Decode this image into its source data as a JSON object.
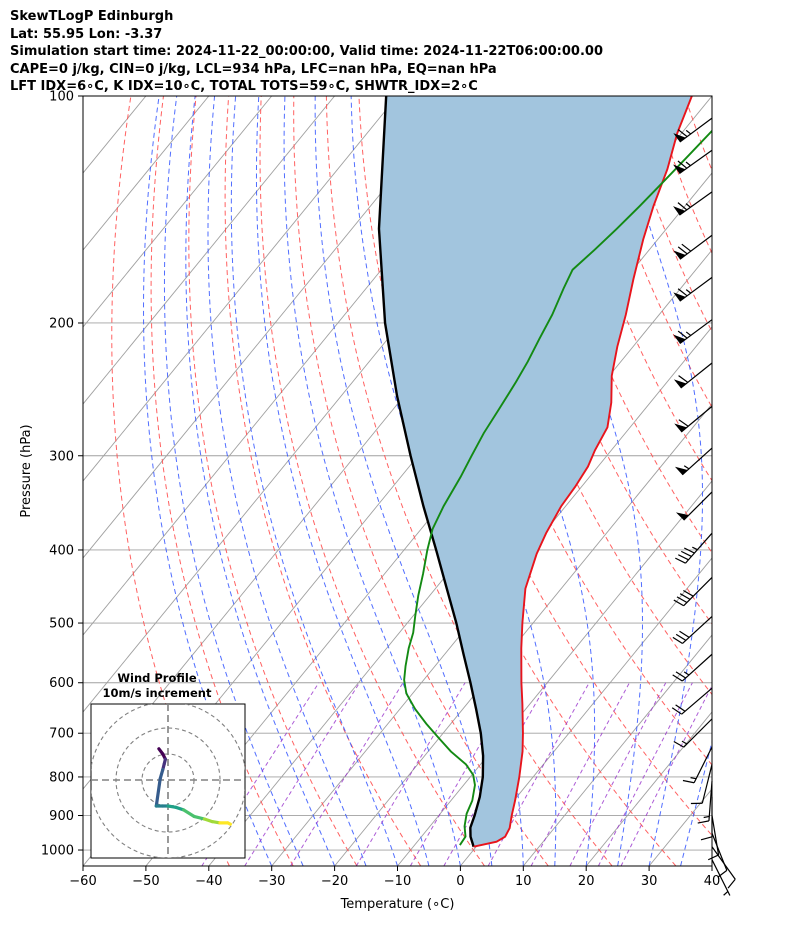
{
  "header": {
    "line1": "SkewTLogP Edinburgh",
    "line2": "Lat: 55.95   Lon: -3.37",
    "line3": "Simulation start time: 2024-11-22_00:00:00, Valid time: 2024-11-22T06:00:00.00",
    "line4": "CAPE=0 j/kg, CIN=0 j/kg, LCL=934 hPa, LFC=nan hPa, EQ=nan hPa",
    "line5": "LFT IDX=6∘C, K IDX=10∘C, TOTAL TOTS=59∘C, SHWTR_IDX=2∘C"
  },
  "chart_data": {
    "type": "line",
    "chart_kind": "skew-T log-P diagram",
    "xlabel": "Temperature (∘C)",
    "ylabel": "Pressure (hPa)",
    "xlim": [
      -60,
      40
    ],
    "ylim": [
      1050,
      100
    ],
    "y_scale": "log",
    "x_ticks": [
      "−60",
      "−50",
      "−40",
      "−30",
      "−20",
      "−10",
      "0",
      "10",
      "20",
      "30",
      "40"
    ],
    "x_tick_values": [
      -60,
      -50,
      -40,
      -30,
      -20,
      -10,
      0,
      10,
      20,
      30,
      40
    ],
    "y_ticks": [
      "1000",
      "900",
      "800",
      "700",
      "600",
      "500",
      "400",
      "300",
      "200",
      "100"
    ],
    "y_tick_values": [
      1000,
      900,
      800,
      700,
      600,
      500,
      400,
      300,
      200,
      100
    ],
    "grid": true,
    "background_lines": {
      "isotherms_color": "#a0a0a0",
      "dry_adiabats_color": "#ff5050",
      "moist_adiabats_color": "#3355ff",
      "mixing_ratio_color": "#9933cc"
    },
    "series": [
      {
        "color": "#e8141c",
        "points": [
          [
            990,
            -0.4
          ],
          [
            975,
            2.6
          ],
          [
            960,
            3.3
          ],
          [
            935,
            2.9
          ],
          [
            900,
            1.6
          ],
          [
            860,
            0.2
          ],
          [
            800,
            -2.2
          ],
          [
            740,
            -5.0
          ],
          [
            700,
            -7.3
          ],
          [
            640,
            -11.2
          ],
          [
            600,
            -14.1
          ],
          [
            540,
            -18.6
          ],
          [
            500,
            -21.7
          ],
          [
            450,
            -25.7
          ],
          [
            405,
            -28.4
          ],
          [
            380,
            -29.6
          ],
          [
            350,
            -30.7
          ],
          [
            330,
            -31.0
          ],
          [
            310,
            -31.6
          ],
          [
            295,
            -32.6
          ],
          [
            275,
            -33.6
          ],
          [
            255,
            -36.2
          ],
          [
            235,
            -39.6
          ],
          [
            215,
            -42.5
          ],
          [
            195,
            -45.3
          ],
          [
            175,
            -48.7
          ],
          [
            155,
            -52.3
          ],
          [
            140,
            -55.0
          ],
          [
            125,
            -57.6
          ],
          [
            112,
            -60.7
          ],
          [
            100,
            -63.2
          ]
        ]
      },
      {
        "color": "#138a13",
        "points": [
          [
            985,
            -2.8
          ],
          [
            960,
            -3.0
          ],
          [
            930,
            -4.5
          ],
          [
            895,
            -5.8
          ],
          [
            860,
            -6.6
          ],
          [
            820,
            -8.2
          ],
          [
            795,
            -9.8
          ],
          [
            770,
            -12.3
          ],
          [
            740,
            -16.4
          ],
          [
            710,
            -20.1
          ],
          [
            680,
            -23.9
          ],
          [
            650,
            -27.6
          ],
          [
            620,
            -31.0
          ],
          [
            595,
            -33.1
          ],
          [
            570,
            -34.7
          ],
          [
            540,
            -36.5
          ],
          [
            515,
            -37.8
          ],
          [
            490,
            -39.6
          ],
          [
            460,
            -41.8
          ],
          [
            430,
            -43.9
          ],
          [
            400,
            -46.3
          ],
          [
            375,
            -48.2
          ],
          [
            350,
            -49.4
          ],
          [
            320,
            -50.5
          ],
          [
            300,
            -51.5
          ],
          [
            280,
            -52.5
          ],
          [
            260,
            -53.2
          ],
          [
            240,
            -54.0
          ],
          [
            225,
            -54.8
          ],
          [
            210,
            -55.9
          ],
          [
            195,
            -57.0
          ],
          [
            180,
            -58.6
          ],
          [
            170,
            -59.6
          ],
          [
            160,
            -58.7
          ],
          [
            150,
            -57.9
          ],
          [
            140,
            -57.2
          ],
          [
            130,
            -56.6
          ],
          [
            120,
            -56.0
          ],
          [
            110,
            -55.4
          ],
          [
            100,
            -55.0
          ]
        ]
      },
      {
        "color": "#000000",
        "points": [
          [
            990,
            -0.4
          ],
          [
            960,
            -2.2
          ],
          [
            934,
            -3.4
          ],
          [
            900,
            -4.3
          ],
          [
            850,
            -5.9
          ],
          [
            800,
            -8.0
          ],
          [
            750,
            -10.7
          ],
          [
            700,
            -14.0
          ],
          [
            650,
            -17.9
          ],
          [
            600,
            -22.2
          ],
          [
            550,
            -27.0
          ],
          [
            500,
            -32.2
          ],
          [
            450,
            -38.2
          ],
          [
            400,
            -44.9
          ],
          [
            350,
            -52.6
          ],
          [
            300,
            -61.2
          ],
          [
            250,
            -71.1
          ],
          [
            200,
            -82.5
          ],
          [
            150,
            -95.7
          ],
          [
            100,
            -111.8
          ]
        ]
      }
    ],
    "wind_barbs": {
      "color": "#000000",
      "levels": [
        {
          "p": 1030,
          "u": -1.5,
          "v": 3.0
        },
        {
          "p": 990,
          "u": -2.5,
          "v": 3.5
        },
        {
          "p": 950,
          "u": -2.0,
          "v": 5.0
        },
        {
          "p": 900,
          "u": -1.0,
          "v": 6.0
        },
        {
          "p": 850,
          "u": 0.0,
          "v": 6.0
        },
        {
          "p": 810,
          "u": 0.5,
          "v": 6.5
        },
        {
          "p": 770,
          "u": 1.5,
          "v": 6.0
        },
        {
          "p": 730,
          "u": 3.0,
          "v": 6.0
        },
        {
          "p": 670,
          "u": 5.0,
          "v": 5.0
        },
        {
          "p": 610,
          "u": 7.0,
          "v": 6.0
        },
        {
          "p": 550,
          "u": 10.0,
          "v": 9.0
        },
        {
          "p": 490,
          "u": 12.0,
          "v": 11.0
        },
        {
          "p": 435,
          "u": 14.0,
          "v": 14.0
        },
        {
          "p": 380,
          "u": 15.0,
          "v": 17.0
        },
        {
          "p": 335,
          "u": 18.0,
          "v": 18.0
        },
        {
          "p": 293,
          "u": 21.0,
          "v": 19.0
        },
        {
          "p": 258,
          "u": 24.0,
          "v": 20.0
        },
        {
          "p": 226,
          "u": 25.0,
          "v": 20.0
        },
        {
          "p": 198,
          "u": 27.0,
          "v": 20.0
        },
        {
          "p": 174,
          "u": 27.0,
          "v": 20.0
        },
        {
          "p": 153,
          "u": 28.0,
          "v": 21.0
        },
        {
          "p": 134,
          "u": 28.0,
          "v": 20.0
        },
        {
          "p": 118,
          "u": 28.0,
          "v": 20.0
        },
        {
          "p": 107,
          "u": 27.0,
          "v": 20.0
        }
      ]
    },
    "hodograph": {
      "title": "Wind Profile",
      "subtitle": "10m/s increment",
      "ring_spacing_ms": 10,
      "colormap": "viridis",
      "points": [
        [
          -3.5,
          12.0
        ],
        [
          -2.0,
          10.0
        ],
        [
          -1.0,
          8.0
        ],
        [
          -1.5,
          6.0
        ],
        [
          -2.0,
          4.0
        ],
        [
          -3.0,
          0.5
        ],
        [
          -4.5,
          -10.0
        ],
        [
          -2.0,
          -10.0
        ],
        [
          0.0,
          -10.0
        ],
        [
          3.0,
          -10.5
        ],
        [
          6.0,
          -11.5
        ],
        [
          10.0,
          -14.0
        ],
        [
          14.0,
          -15.0
        ],
        [
          17.0,
          -16.0
        ],
        [
          20.0,
          -16.5
        ],
        [
          23.0,
          -16.5
        ],
        [
          24.0,
          -17.0
        ]
      ]
    }
  }
}
